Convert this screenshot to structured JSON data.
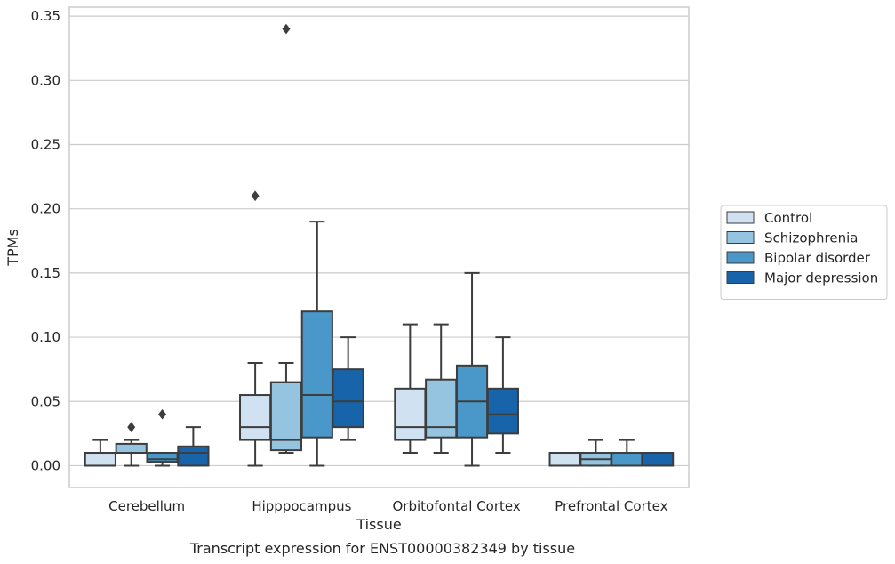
{
  "chart_data": {
    "type": "box",
    "title": "",
    "caption": "Transcript expression for ENST00000382349 by tissue",
    "xlabel": "Tissue",
    "ylabel": "TPMs",
    "ylim": [
      -0.017,
      0.357
    ],
    "yticks": [
      "0.00",
      "0.05",
      "0.10",
      "0.15",
      "0.20",
      "0.25",
      "0.30",
      "0.35"
    ],
    "grid": true,
    "legend_position": "right",
    "categories": [
      "Cerebellum",
      "Hipppocampus",
      "Orbitofontal Cortex",
      "Prefrontal Cortex"
    ],
    "series": [
      {
        "name": "Control",
        "color": "#d0e1f2",
        "boxes": [
          {
            "whislo": 0.0,
            "q1": 0.0,
            "med": 0.0,
            "q3": 0.01,
            "whishi": 0.02,
            "fliers": []
          },
          {
            "whislo": 0.0,
            "q1": 0.02,
            "med": 0.03,
            "q3": 0.055,
            "whishi": 0.08,
            "fliers": [
              0.21
            ]
          },
          {
            "whislo": 0.01,
            "q1": 0.02,
            "med": 0.03,
            "q3": 0.06,
            "whishi": 0.11,
            "fliers": []
          },
          {
            "whislo": 0.0,
            "q1": 0.0,
            "med": 0.0,
            "q3": 0.01,
            "whishi": 0.01,
            "fliers": []
          }
        ]
      },
      {
        "name": "Schizophrenia",
        "color": "#94c4df",
        "boxes": [
          {
            "whislo": 0.0,
            "q1": 0.01,
            "med": 0.01,
            "q3": 0.017,
            "whishi": 0.02,
            "fliers": [
              0.03
            ]
          },
          {
            "whislo": 0.01,
            "q1": 0.012,
            "med": 0.02,
            "q3": 0.065,
            "whishi": 0.08,
            "fliers": [
              0.34
            ]
          },
          {
            "whislo": 0.01,
            "q1": 0.022,
            "med": 0.03,
            "q3": 0.067,
            "whishi": 0.11,
            "fliers": []
          },
          {
            "whislo": 0.0,
            "q1": 0.0,
            "med": 0.005,
            "q3": 0.01,
            "whishi": 0.02,
            "fliers": []
          }
        ]
      },
      {
        "name": "Bipolar disorder",
        "color": "#4a98c9",
        "boxes": [
          {
            "whislo": 0.0,
            "q1": 0.003,
            "med": 0.005,
            "q3": 0.01,
            "whishi": 0.01,
            "fliers": [
              0.04
            ]
          },
          {
            "whislo": 0.0,
            "q1": 0.022,
            "med": 0.055,
            "q3": 0.12,
            "whishi": 0.19,
            "fliers": []
          },
          {
            "whislo": 0.0,
            "q1": 0.022,
            "med": 0.05,
            "q3": 0.078,
            "whishi": 0.15,
            "fliers": []
          },
          {
            "whislo": 0.0,
            "q1": 0.0,
            "med": 0.0,
            "q3": 0.01,
            "whishi": 0.02,
            "fliers": []
          }
        ]
      },
      {
        "name": "Major depression",
        "color": "#1764ab",
        "boxes": [
          {
            "whislo": 0.0,
            "q1": 0.0,
            "med": 0.01,
            "q3": 0.015,
            "whishi": 0.03,
            "fliers": []
          },
          {
            "whislo": 0.02,
            "q1": 0.03,
            "med": 0.05,
            "q3": 0.075,
            "whishi": 0.1,
            "fliers": []
          },
          {
            "whislo": 0.01,
            "q1": 0.025,
            "med": 0.04,
            "q3": 0.06,
            "whishi": 0.1,
            "fliers": []
          },
          {
            "whislo": 0.0,
            "q1": 0.0,
            "med": 0.0,
            "q3": 0.01,
            "whishi": 0.01,
            "fliers": []
          }
        ]
      }
    ]
  }
}
